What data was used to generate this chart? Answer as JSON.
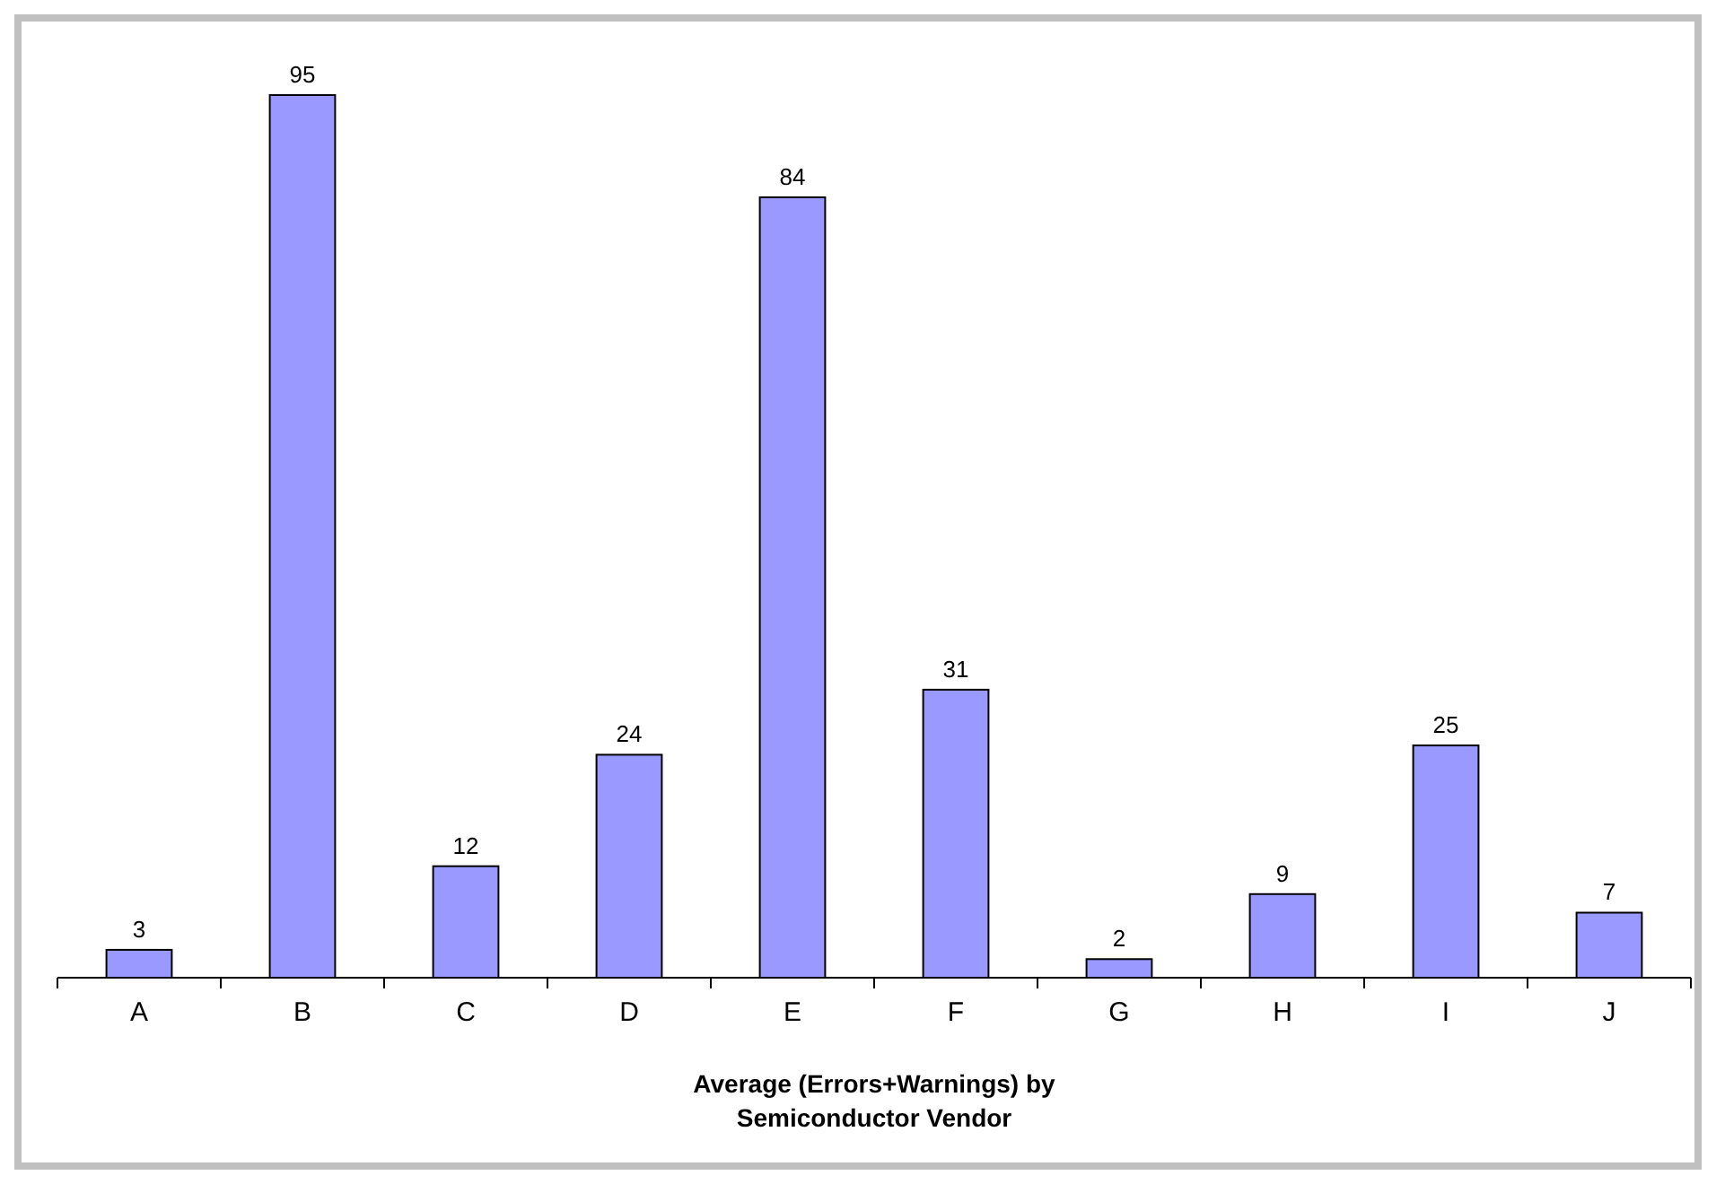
{
  "chart_data": {
    "type": "bar",
    "xlabel": "Average (Errors+Warnings) by Semiconductor Vendor",
    "categories": [
      "A",
      "B",
      "C",
      "D",
      "E",
      "F",
      "G",
      "H",
      "I",
      "J"
    ],
    "values": [
      3,
      95,
      12,
      24,
      84,
      31,
      2,
      9,
      25,
      7
    ],
    "color": "#9999ff",
    "data_labels": true
  }
}
